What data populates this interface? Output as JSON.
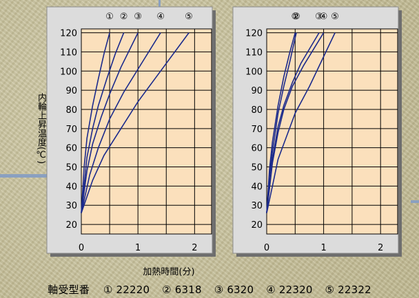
{
  "chart_data": [
    {
      "type": "line",
      "ylabel": "内輪上昇温度(℃)",
      "ylim": [
        15,
        122
      ],
      "xlim": [
        0,
        2.3
      ],
      "y_ticks": [
        "120",
        "110",
        "100",
        "90",
        "80",
        "70",
        "60",
        "50",
        "40",
        "30",
        "20"
      ],
      "x_ticks": [
        "0",
        "1",
        "2"
      ],
      "grid": true,
      "series": [
        {
          "name": "①",
          "x": [
            0,
            0.05,
            0.1,
            0.2,
            0.3,
            0.4,
            0.5
          ],
          "y": [
            26,
            50,
            65,
            82,
            96,
            109,
            120
          ]
        },
        {
          "name": "②",
          "x": [
            0,
            0.1,
            0.2,
            0.3,
            0.45,
            0.6,
            0.75
          ],
          "y": [
            26,
            55,
            70,
            82,
            96,
            109,
            120
          ]
        },
        {
          "name": "③",
          "x": [
            0,
            0.1,
            0.2,
            0.35,
            0.5,
            0.7,
            1.0
          ],
          "y": [
            26,
            48,
            62,
            76,
            88,
            102,
            120
          ]
        },
        {
          "name": "④",
          "x": [
            0,
            0.15,
            0.3,
            0.5,
            0.75,
            1.0,
            1.4
          ],
          "y": [
            26,
            46,
            60,
            75,
            89,
            101,
            120
          ]
        },
        {
          "name": "⑤",
          "x": [
            0,
            0.2,
            0.4,
            0.7,
            1.0,
            1.4,
            1.9
          ],
          "y": [
            26,
            43,
            56,
            70,
            84,
            100,
            120
          ]
        }
      ]
    },
    {
      "type": "line",
      "ylim": [
        15,
        122
      ],
      "xlim": [
        0,
        2.3
      ],
      "y_ticks": [
        "120",
        "110",
        "100",
        "90",
        "80",
        "70",
        "60",
        "50",
        "40",
        "30",
        "20"
      ],
      "x_ticks": [
        "0",
        "1",
        "2"
      ],
      "grid": true,
      "series": [
        {
          "name": "①",
          "x": [
            0,
            0.05,
            0.1,
            0.2,
            0.3,
            0.4,
            0.5
          ],
          "y": [
            26,
            49,
            63,
            82,
            97,
            109,
            120
          ]
        },
        {
          "name": "②",
          "x": [
            0,
            0.05,
            0.1,
            0.2,
            0.3,
            0.4,
            0.52
          ],
          "y": [
            26,
            45,
            58,
            78,
            92,
            104,
            120
          ]
        },
        {
          "name": "③",
          "x": [
            0,
            0.1,
            0.2,
            0.3,
            0.45,
            0.6,
            0.92
          ],
          "y": [
            26,
            54,
            71,
            82,
            94,
            104,
            120
          ]
        },
        {
          "name": "④",
          "x": [
            0,
            0.1,
            0.2,
            0.3,
            0.45,
            0.65,
            1.0
          ],
          "y": [
            26,
            52,
            68,
            80,
            92,
            103,
            120
          ]
        },
        {
          "name": "⑤",
          "x": [
            0,
            0.1,
            0.2,
            0.35,
            0.5,
            0.75,
            1.2
          ],
          "y": [
            26,
            40,
            54,
            66,
            78,
            92,
            120
          ]
        }
      ]
    }
  ],
  "xlabel": "加熱時間(分)",
  "caption": {
    "prefix": "軸受型番",
    "items": [
      "① 22220",
      "② 6318",
      "③ 6320",
      "④ 22320",
      "⑤ 22322"
    ]
  },
  "colors": {
    "line": "#1b2a8c",
    "plot_bg": "#fbe0bc",
    "panel_bg": "#dcdcdc",
    "panel_border": "#8a8a8a"
  }
}
